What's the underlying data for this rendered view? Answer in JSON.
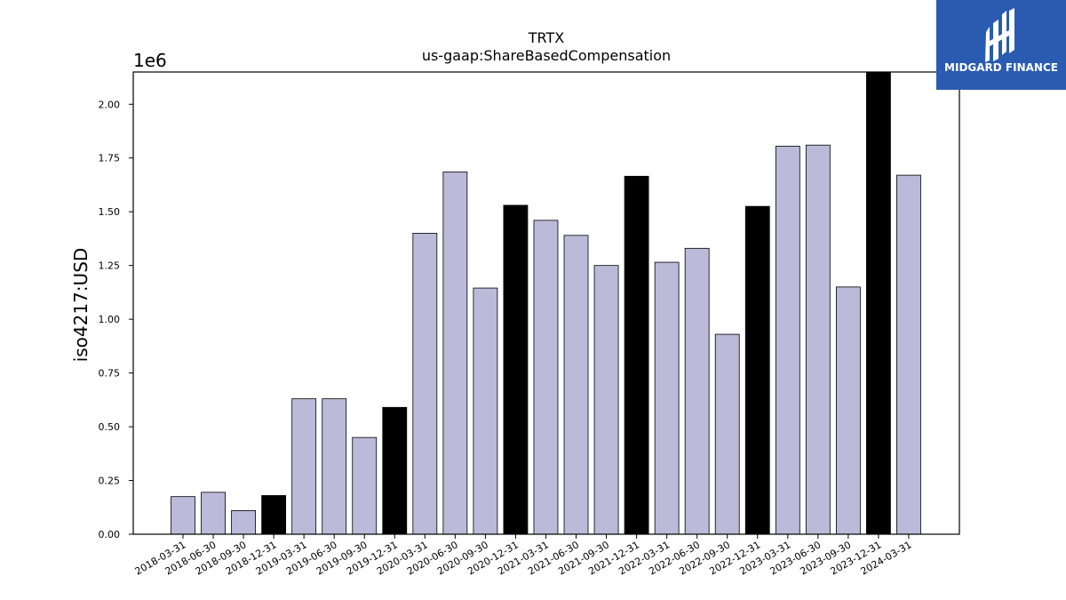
{
  "chart_data": {
    "type": "bar",
    "title": "TRTX",
    "subtitle": "us-gaap:ShareBasedCompensation",
    "ylabel": "iso4217:USD",
    "xlabel": "",
    "y_offset_label": "1e6",
    "ylim": [
      0,
      2150000
    ],
    "yticks": [
      0,
      250000,
      500000,
      750000,
      1000000,
      1250000,
      1500000,
      1750000,
      2000000
    ],
    "ytick_labels": [
      "0.00",
      "0.25",
      "0.50",
      "0.75",
      "1.00",
      "1.25",
      "1.50",
      "1.75",
      "2.00"
    ],
    "categories": [
      "2018-03-31",
      "2018-06-30",
      "2018-09-30",
      "2018-12-31",
      "2019-03-31",
      "2019-06-30",
      "2019-09-30",
      "2019-12-31",
      "2020-03-31",
      "2020-06-30",
      "2020-09-30",
      "2020-12-31",
      "2021-03-31",
      "2021-06-30",
      "2021-09-30",
      "2021-12-31",
      "2022-03-31",
      "2022-06-30",
      "2022-09-30",
      "2022-12-31",
      "2023-03-31",
      "2023-06-30",
      "2023-09-30",
      "2023-12-31",
      "2024-03-31"
    ],
    "values": [
      175000,
      195000,
      110000,
      180000,
      630000,
      630000,
      450000,
      590000,
      1400000,
      1685000,
      1145000,
      1530000,
      1460000,
      1390000,
      1250000,
      1665000,
      1265000,
      1330000,
      930000,
      1525000,
      1805000,
      1810000,
      1150000,
      2150000,
      1670000
    ],
    "year_end": [
      false,
      false,
      false,
      true,
      false,
      false,
      false,
      true,
      false,
      false,
      false,
      true,
      false,
      false,
      false,
      true,
      false,
      false,
      false,
      true,
      false,
      false,
      false,
      true,
      false
    ],
    "colors": {
      "quarter": "#bcb9d9",
      "year_end": "#000000",
      "edge": "#000000"
    },
    "grid": false,
    "legend": "none"
  },
  "logo": {
    "text": "MIDGARD FINANCE",
    "background": "#2a5bb0"
  }
}
